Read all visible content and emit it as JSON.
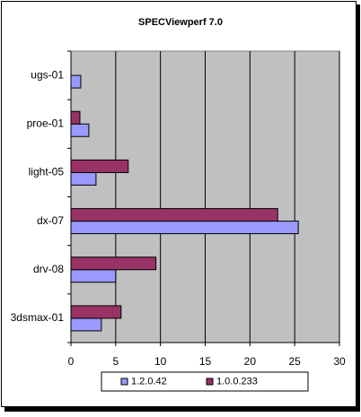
{
  "chart_data": {
    "type": "hbar",
    "title": "SPECViewperf 7.0",
    "categories": [
      "ugs-01",
      "proe-01",
      "light-05",
      "dx-07",
      "drv-08",
      "3dsmax-01"
    ],
    "series": [
      {
        "name": "1.2.0.42",
        "color": "#9999ff",
        "values": [
          1.1,
          2.0,
          2.8,
          25.4,
          5.0,
          3.4
        ]
      },
      {
        "name": "1.0.0.233",
        "color": "#993366",
        "values": [
          0,
          1.0,
          6.4,
          23.1,
          9.5,
          5.6
        ]
      }
    ],
    "xlim": [
      0,
      30
    ],
    "xticks": [
      0,
      5,
      10,
      15,
      20,
      25,
      30
    ],
    "grid": true,
    "legend": "bottom"
  }
}
